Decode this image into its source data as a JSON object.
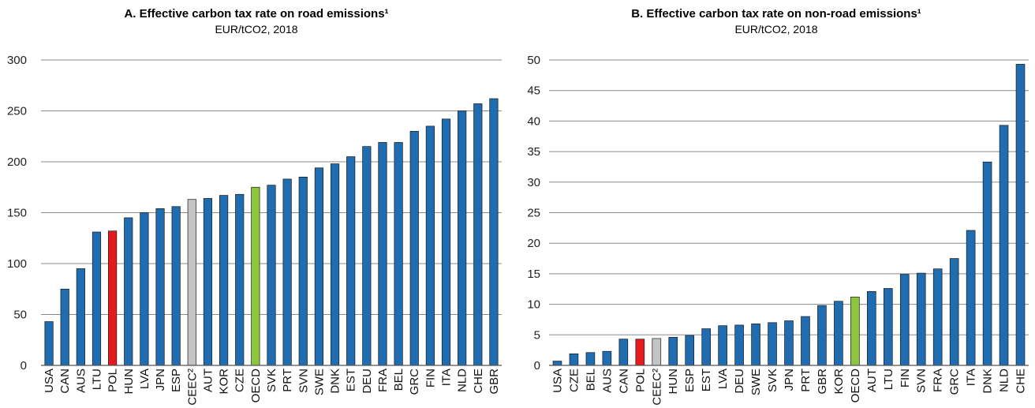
{
  "colors": {
    "default": "#1F6CB0",
    "highlight": "#E41A1C",
    "oecd": "#8CC63F",
    "ceec": "#C4C4C4",
    "grid": "#8A8A8A",
    "axis": "#555555"
  },
  "chart_data": [
    {
      "type": "bar",
      "title": "A. Effective carbon tax rate on road emissions¹",
      "subtitle": "EUR/tCO2, 2018",
      "xlabel": "",
      "ylabel": "",
      "ylim": [
        0,
        300
      ],
      "yticks": [
        0,
        50,
        100,
        150,
        200,
        250,
        300
      ],
      "grid": true,
      "categories": [
        "USA",
        "CAN",
        "AUS",
        "LTU",
        "POL",
        "HUN",
        "LVA",
        "JPN",
        "ESP",
        "CEEC²",
        "AUT",
        "KOR",
        "CZE",
        "OECD",
        "SVK",
        "PRT",
        "SVN",
        "SWE",
        "DNK",
        "EST",
        "DEU",
        "FRA",
        "BEL",
        "GRC",
        "FIN",
        "ITA",
        "NLD",
        "CHE",
        "GBR"
      ],
      "values": [
        43,
        75,
        95,
        131,
        132,
        145,
        150,
        154,
        156,
        163,
        164,
        167,
        168,
        175,
        177,
        183,
        185,
        194,
        198,
        205,
        215,
        219,
        219,
        230,
        235,
        242,
        250,
        257,
        262
      ],
      "highlight": {
        "POL": "highlight",
        "OECD": "oecd",
        "CEEC²": "ceec"
      }
    },
    {
      "type": "bar",
      "title": "B. Effective carbon tax rate on non-road emissions¹",
      "subtitle": "EUR/tCO2, 2018",
      "xlabel": "",
      "ylabel": "",
      "ylim": [
        0,
        50
      ],
      "yticks": [
        0,
        5,
        10,
        15,
        20,
        25,
        30,
        35,
        40,
        45,
        50
      ],
      "grid": true,
      "categories": [
        "USA",
        "CZE",
        "BEL",
        "AUS",
        "CAN",
        "POL",
        "CEEC²",
        "HUN",
        "ESP",
        "EST",
        "LVA",
        "DEU",
        "SWE",
        "SVK",
        "JPN",
        "PRT",
        "GBR",
        "KOR",
        "OECD",
        "AUT",
        "LTU",
        "FIN",
        "SVN",
        "FRA",
        "GRC",
        "ITA",
        "DNK",
        "NLD",
        "CHE"
      ],
      "values": [
        0.7,
        1.9,
        2.1,
        2.3,
        4.3,
        4.3,
        4.4,
        4.6,
        4.9,
        6.0,
        6.5,
        6.6,
        6.8,
        7.0,
        7.3,
        8.0,
        9.8,
        10.5,
        11.2,
        12.1,
        12.6,
        14.9,
        15.1,
        15.8,
        17.5,
        22.1,
        33.3,
        39.3,
        49.3
      ],
      "highlight": {
        "POL": "highlight",
        "OECD": "oecd",
        "CEEC²": "ceec"
      }
    }
  ]
}
